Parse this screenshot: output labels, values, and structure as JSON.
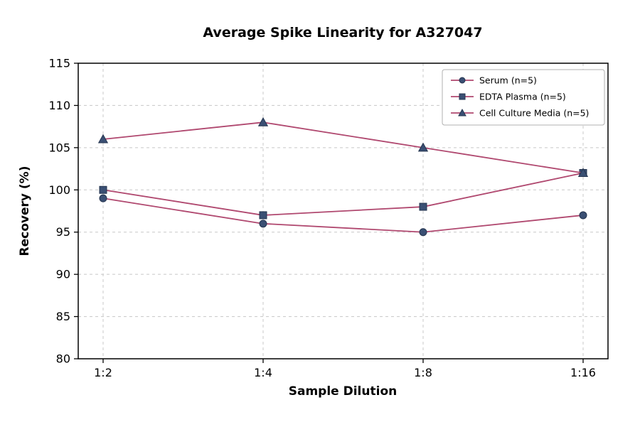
{
  "title": "Average Spike Linearity for A327047",
  "chart_data": {
    "type": "line",
    "title": "Average Spike Linearity for A327047",
    "categories": [
      "1:2",
      "1:4",
      "1:8",
      "1:16"
    ],
    "series": [
      {
        "name": "Serum (n=5)",
        "marker": "circle",
        "values": [
          99,
          96,
          95,
          97
        ]
      },
      {
        "name": "EDTA Plasma (n=5)",
        "marker": "square",
        "values": [
          100,
          97,
          98,
          102
        ]
      },
      {
        "name": "Cell Culture Media (n=5)",
        "marker": "triangle",
        "values": [
          106,
          108,
          105,
          102
        ]
      }
    ],
    "xlabel": "Sample Dilution",
    "ylabel": "Recovery (%)",
    "ylim": [
      80,
      115
    ],
    "yticks": [
      80,
      85,
      90,
      95,
      100,
      105,
      110,
      115
    ],
    "grid": true,
    "grid_style": "dashed",
    "legend_position": "upper right",
    "colors": {
      "line": "#b0486f",
      "marker_fill": "#3a4f73",
      "marker_edge": "#24344f",
      "grid": "#c8c8c8",
      "axis": "#000000",
      "legend_border": "#b0b0b0",
      "background": "#ffffff"
    }
  }
}
